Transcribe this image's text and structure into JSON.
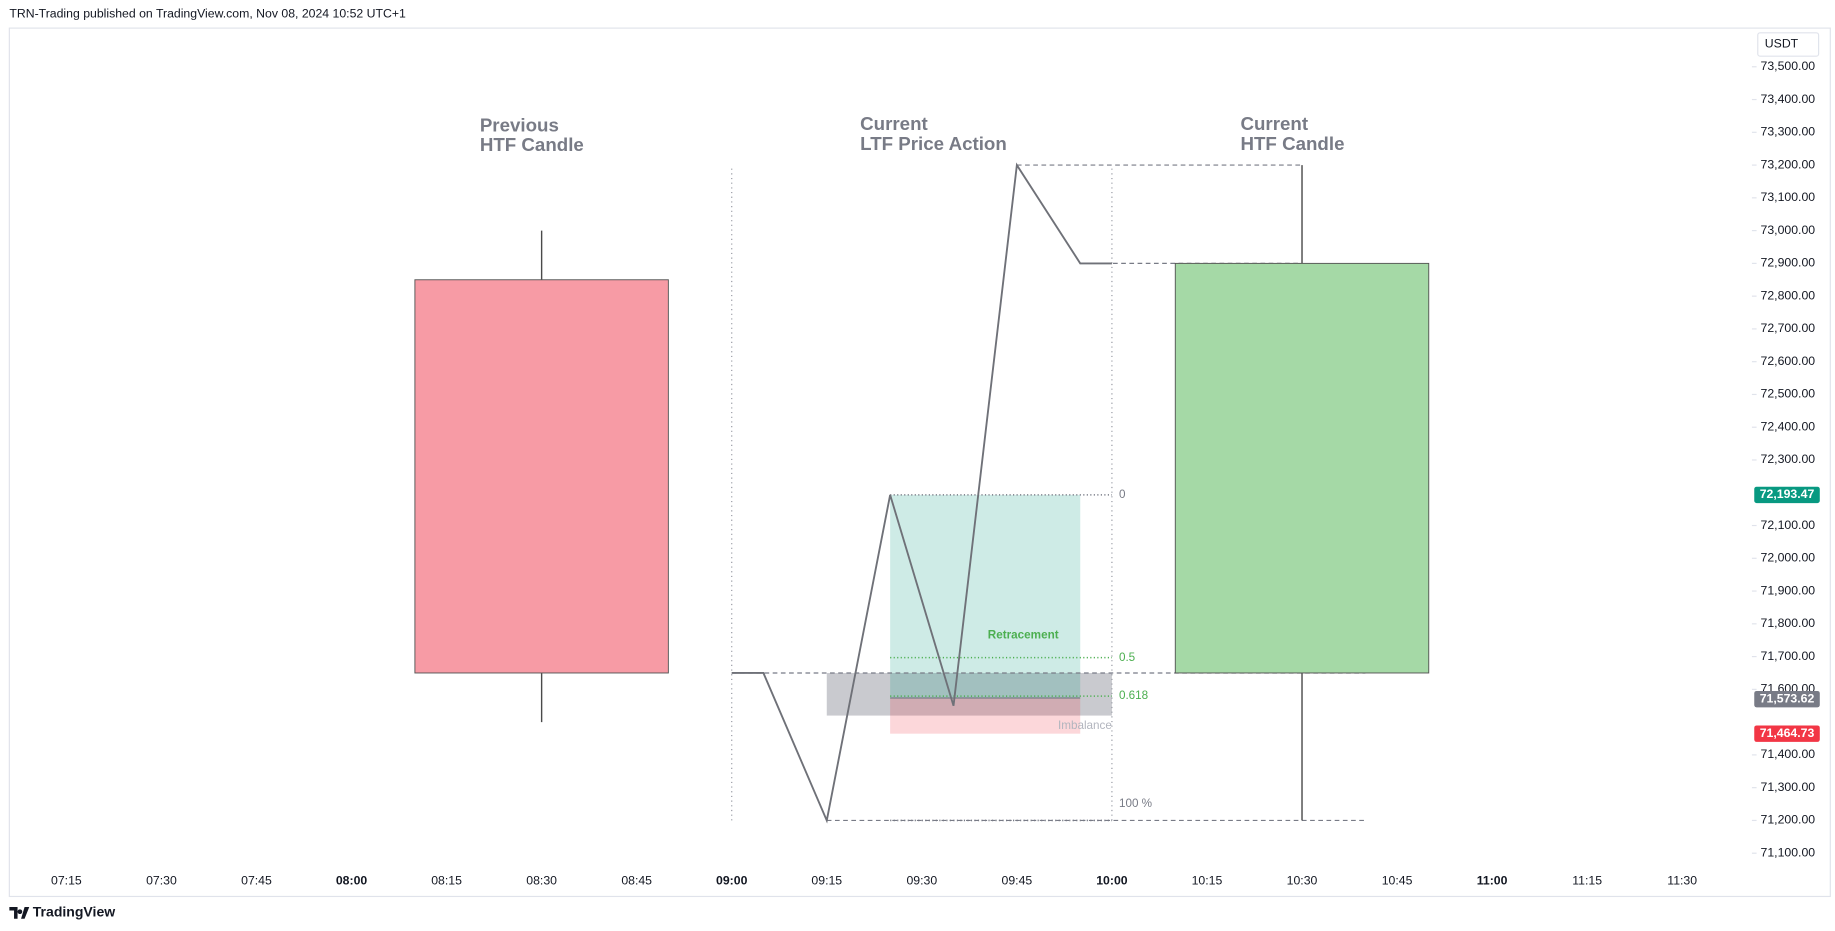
{
  "chart_data": {
    "type": "candlestick",
    "header": "TRN-Trading published on TradingView.com, Nov 08, 2024 10:52 UTC+1",
    "currency": "USDT",
    "brand": "TradingView",
    "xlim": [
      "07:06",
      "11:41"
    ],
    "xticks": [
      "07:15",
      "07:30",
      "07:45",
      "08:00",
      "08:15",
      "08:30",
      "08:45",
      "09:00",
      "09:15",
      "09:30",
      "09:45",
      "10:00",
      "10:15",
      "10:30",
      "10:45",
      "11:00",
      "11:15",
      "11:30"
    ],
    "ylim": [
      70968,
      73618
    ],
    "yticks": [
      {
        "value": 73500,
        "label": "73,500.00"
      },
      {
        "value": 73400,
        "label": "73,400.00"
      },
      {
        "value": 73300,
        "label": "73,300.00"
      },
      {
        "value": 73200,
        "label": "73,200.00"
      },
      {
        "value": 73100,
        "label": "73,100.00"
      },
      {
        "value": 73000,
        "label": "73,000.00"
      },
      {
        "value": 72900,
        "label": "72,900.00"
      },
      {
        "value": 72800,
        "label": "72,800.00"
      },
      {
        "value": 72700,
        "label": "72,700.00"
      },
      {
        "value": 72600,
        "label": "72,600.00"
      },
      {
        "value": 72500,
        "label": "72,500.00"
      },
      {
        "value": 72400,
        "label": "72,400.00"
      },
      {
        "value": 72300,
        "label": "72,300.00"
      },
      {
        "value": 72100,
        "label": "72,100.00"
      },
      {
        "value": 72000,
        "label": "72,000.00"
      },
      {
        "value": 71900,
        "label": "71,900.00"
      },
      {
        "value": 71800,
        "label": "71,800.00"
      },
      {
        "value": 71700,
        "label": "71,700.00"
      },
      {
        "value": 71600,
        "label": "71,600.00"
      },
      {
        "value": 71400,
        "label": "71,400.00"
      },
      {
        "value": 71300,
        "label": "71,300.00"
      },
      {
        "value": 71200,
        "label": "71,200.00"
      },
      {
        "value": 71100,
        "label": "71,100.00"
      }
    ],
    "candles": [
      {
        "time": "08:30",
        "open": 72850,
        "high": 73000,
        "low": 71500,
        "close": 71650,
        "color": "#f79ba5"
      },
      {
        "time": "10:30",
        "open": 71650,
        "high": 73200,
        "low": 71200,
        "close": 72900,
        "color": "#a5d9a6"
      }
    ],
    "line": {
      "color": "#6f7178",
      "x": [
        "09:00",
        "09:05",
        "09:15",
        "09:25",
        "09:35",
        "09:45",
        "09:55",
        "10:00"
      ],
      "values": [
        71650,
        71650,
        71200,
        72193.47,
        71550,
        73200,
        72900,
        72900
      ]
    },
    "annotations": [
      {
        "lines": [
          "Previous",
          "HTF Candle"
        ]
      },
      {
        "lines": [
          "Current",
          "LTF Price Action"
        ]
      },
      {
        "lines": [
          "Current",
          "HTF Candle"
        ]
      }
    ],
    "dashed_levels": [
      {
        "price": 73200,
        "from": "09:45",
        "to": "10:30"
      },
      {
        "price": 72900,
        "from": "09:55",
        "to": "10:30"
      },
      {
        "price": 71650,
        "from": "09:00",
        "to": "10:40"
      },
      {
        "price": 71200,
        "from": "09:15",
        "to": "10:40"
      }
    ],
    "vlines": [
      {
        "time": "09:00",
        "from": 71200,
        "to": 73200
      },
      {
        "time": "10:00",
        "from": 71200,
        "to": 73200
      }
    ],
    "fib": {
      "x": [
        "09:25",
        "10:00"
      ],
      "levels": [
        {
          "label": "0",
          "price": 72193.47,
          "color": "#787b86"
        },
        {
          "label": "0.5",
          "price": 71696.7,
          "color": "#4caf50"
        },
        {
          "label": "0.618",
          "price": 71579.5,
          "color": "#4caf50"
        },
        {
          "label": "100 %",
          "price": 71200,
          "color": "#787b86"
        }
      ]
    },
    "position": {
      "x": [
        "09:25",
        "09:55"
      ],
      "target": 72193.47,
      "entry": 71573.62,
      "stop": 71464.73,
      "label": "Retracement"
    },
    "imbalance": {
      "x": [
        "09:15",
        "10:00"
      ],
      "top": 71650,
      "bottom": 71520,
      "label": "Imbalance"
    },
    "price_labels": [
      {
        "value": 72193.47,
        "label": "72,193.47",
        "color": "#089981"
      },
      {
        "value": 71573.62,
        "label": "71,573.62",
        "color": "#787b86"
      },
      {
        "value": 71464.73,
        "label": "71,464.73",
        "color": "#f23645"
      }
    ]
  }
}
